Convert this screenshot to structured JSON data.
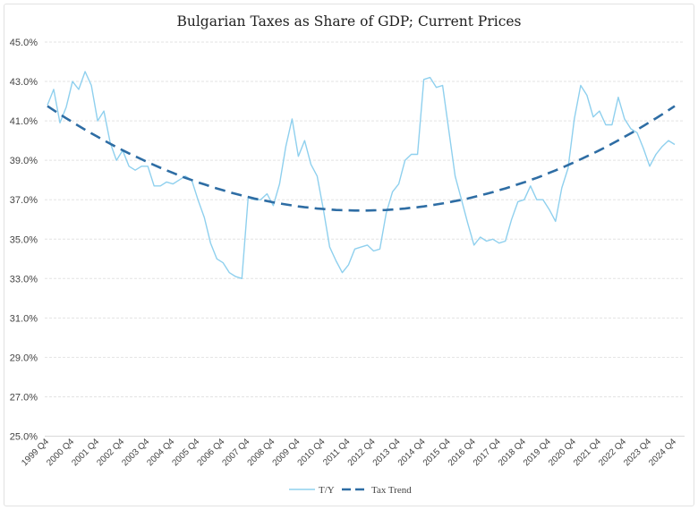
{
  "chart_data": {
    "type": "line",
    "title": "Bulgarian Taxes as Share of GDP; Current Prices",
    "xlabel": "",
    "ylabel": "",
    "ylim": [
      25,
      45
    ],
    "y_ticks": [
      "25.0%",
      "27.0%",
      "29.0%",
      "31.0%",
      "33.0%",
      "35.0%",
      "37.0%",
      "39.0%",
      "41.0%",
      "43.0%",
      "45.0%"
    ],
    "y_tick_values": [
      25,
      27,
      29,
      31,
      33,
      35,
      37,
      39,
      41,
      43,
      45
    ],
    "x_tick_labels": [
      "1999 Q4",
      "2000 Q4",
      "2001 Q4",
      "2002 Q4",
      "2003 Q4",
      "2004 Q4",
      "2005 Q4",
      "2006 Q4",
      "2007 Q4",
      "2008 Q4",
      "2009 Q4",
      "2010 Q4",
      "2011 Q4",
      "2012 Q4",
      "2013 Q4",
      "2014 Q4",
      "2015 Q4",
      "2016 Q4",
      "2017 Q4",
      "2018 Q4",
      "2019 Q4",
      "2020 Q4",
      "2021 Q4",
      "2022 Q4",
      "2023 Q4",
      "2024 Q4"
    ],
    "x_start": "1999 Q4",
    "x_end": "2024 Q4",
    "x_frequency": "quarterly",
    "grid": "horizontal dashed",
    "legend_position": "bottom",
    "series": [
      {
        "name": "T/Y",
        "color": "#8fd0ee",
        "style": "solid",
        "values": [
          41.8,
          42.6,
          40.9,
          41.7,
          43.0,
          42.6,
          43.5,
          42.8,
          41.0,
          41.5,
          39.9,
          39.0,
          39.5,
          38.7,
          38.5,
          38.7,
          38.7,
          37.7,
          37.7,
          37.9,
          37.8,
          38.0,
          38.2,
          38.0,
          37.0,
          36.1,
          34.8,
          34.0,
          33.8,
          33.3,
          33.1,
          33.0,
          37.1,
          37.0,
          37.0,
          37.3,
          36.7,
          37.8,
          39.7,
          41.1,
          39.2,
          40.0,
          38.8,
          38.2,
          36.5,
          34.6,
          33.9,
          33.3,
          33.7,
          34.5,
          34.6,
          34.7,
          34.4,
          34.5,
          36.3,
          37.4,
          37.8,
          39.0,
          39.3,
          39.3,
          43.1,
          43.2,
          42.7,
          42.8,
          40.5,
          38.2,
          37.0,
          35.8,
          34.7,
          35.1,
          34.9,
          35.0,
          34.8,
          34.9,
          36.0,
          36.9,
          37.0,
          37.7,
          37.0,
          37.0,
          36.5,
          35.9,
          37.6,
          38.6,
          41.1,
          42.8,
          42.3,
          41.2,
          41.5,
          40.8,
          40.8,
          42.2,
          41.1,
          40.6,
          40.4,
          39.6,
          38.7,
          39.3,
          39.7,
          40.0,
          39.8
        ]
      },
      {
        "name": "Tax Trend",
        "color": "#2e6da4",
        "style": "dashed",
        "values": [
          41.75,
          41.54,
          41.33,
          41.13,
          40.94,
          40.74,
          40.55,
          40.37,
          40.19,
          40.01,
          39.84,
          39.67,
          39.51,
          39.35,
          39.2,
          39.05,
          38.9,
          38.76,
          38.62,
          38.49,
          38.36,
          38.23,
          38.11,
          38.0,
          37.88,
          37.78,
          37.67,
          37.57,
          37.48,
          37.38,
          37.3,
          37.22,
          37.14,
          37.06,
          36.99,
          36.93,
          36.87,
          36.81,
          36.76,
          36.71,
          36.66,
          36.62,
          36.59,
          36.55,
          36.53,
          36.5,
          36.48,
          36.47,
          36.46,
          36.45,
          36.45,
          36.45,
          36.46,
          36.47,
          36.48,
          36.5,
          36.53,
          36.55,
          36.59,
          36.62,
          36.66,
          36.71,
          36.76,
          36.81,
          36.87,
          36.93,
          36.99,
          37.06,
          37.14,
          37.22,
          37.3,
          37.38,
          37.48,
          37.57,
          37.67,
          37.78,
          37.88,
          38.0,
          38.11,
          38.23,
          38.36,
          38.49,
          38.62,
          38.76,
          38.9,
          39.05,
          39.2,
          39.35,
          39.51,
          39.67,
          39.84,
          40.01,
          40.19,
          40.37,
          40.55,
          40.74,
          40.94,
          41.13,
          41.33,
          41.54,
          41.75
        ]
      }
    ]
  }
}
